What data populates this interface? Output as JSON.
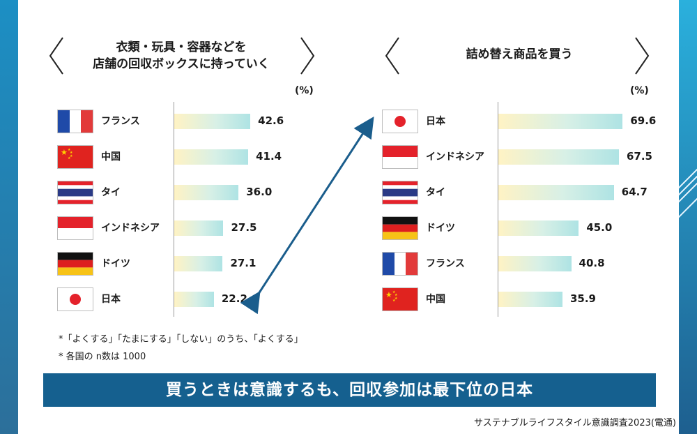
{
  "colors": {
    "banner": "#15608f",
    "arrow": "#1a5d8c"
  },
  "chart_data": [
    {
      "type": "bar",
      "orientation": "horizontal",
      "title": "衣類・玩具・容器などを店舗の回収ボックスに持っていく",
      "unit_label": "(%)",
      "categories": [
        "フランス",
        "中国",
        "タイ",
        "インドネシア",
        "ドイツ",
        "日本"
      ],
      "values": [
        42.6,
        41.4,
        36.0,
        27.5,
        27.1,
        22.2
      ],
      "value_labels": [
        "42.6",
        "41.4",
        "36.0",
        "27.5",
        "27.1",
        "22.2"
      ],
      "xlim": [
        0,
        80
      ]
    },
    {
      "type": "bar",
      "orientation": "horizontal",
      "title": "詰め替え商品を買う",
      "unit_label": "(%)",
      "categories": [
        "日本",
        "インドネシア",
        "タイ",
        "ドイツ",
        "フランス",
        "中国"
      ],
      "values": [
        69.6,
        67.5,
        64.7,
        45.0,
        40.8,
        35.9
      ],
      "value_labels": [
        "69.6",
        "67.5",
        "64.7",
        "45.0",
        "40.8",
        "35.9"
      ],
      "xlim": [
        0,
        80
      ]
    }
  ],
  "left_title_lines": [
    "衣類・玩具・容器などを",
    "店舗の回収ボックスに持っていく"
  ],
  "right_title_lines": [
    "詰め替え商品を買う"
  ],
  "flags_left": [
    "france-flag",
    "china-flag",
    "thailand-flag",
    "indonesia-flag",
    "germany-flag",
    "japan-flag"
  ],
  "flags_right": [
    "japan-flag",
    "indonesia-flag",
    "thailand-flag",
    "germany-flag",
    "france-flag",
    "china-flag"
  ],
  "notes": [
    "*「よくする」「たまにする」「しない」のうち、「よくする」",
    "* 各国の n数は 1000"
  ],
  "banner": "買うときは意識するも、回収参加は最下位の日本",
  "source": "サステナブルライフスタイル意識調査2023(電通)"
}
